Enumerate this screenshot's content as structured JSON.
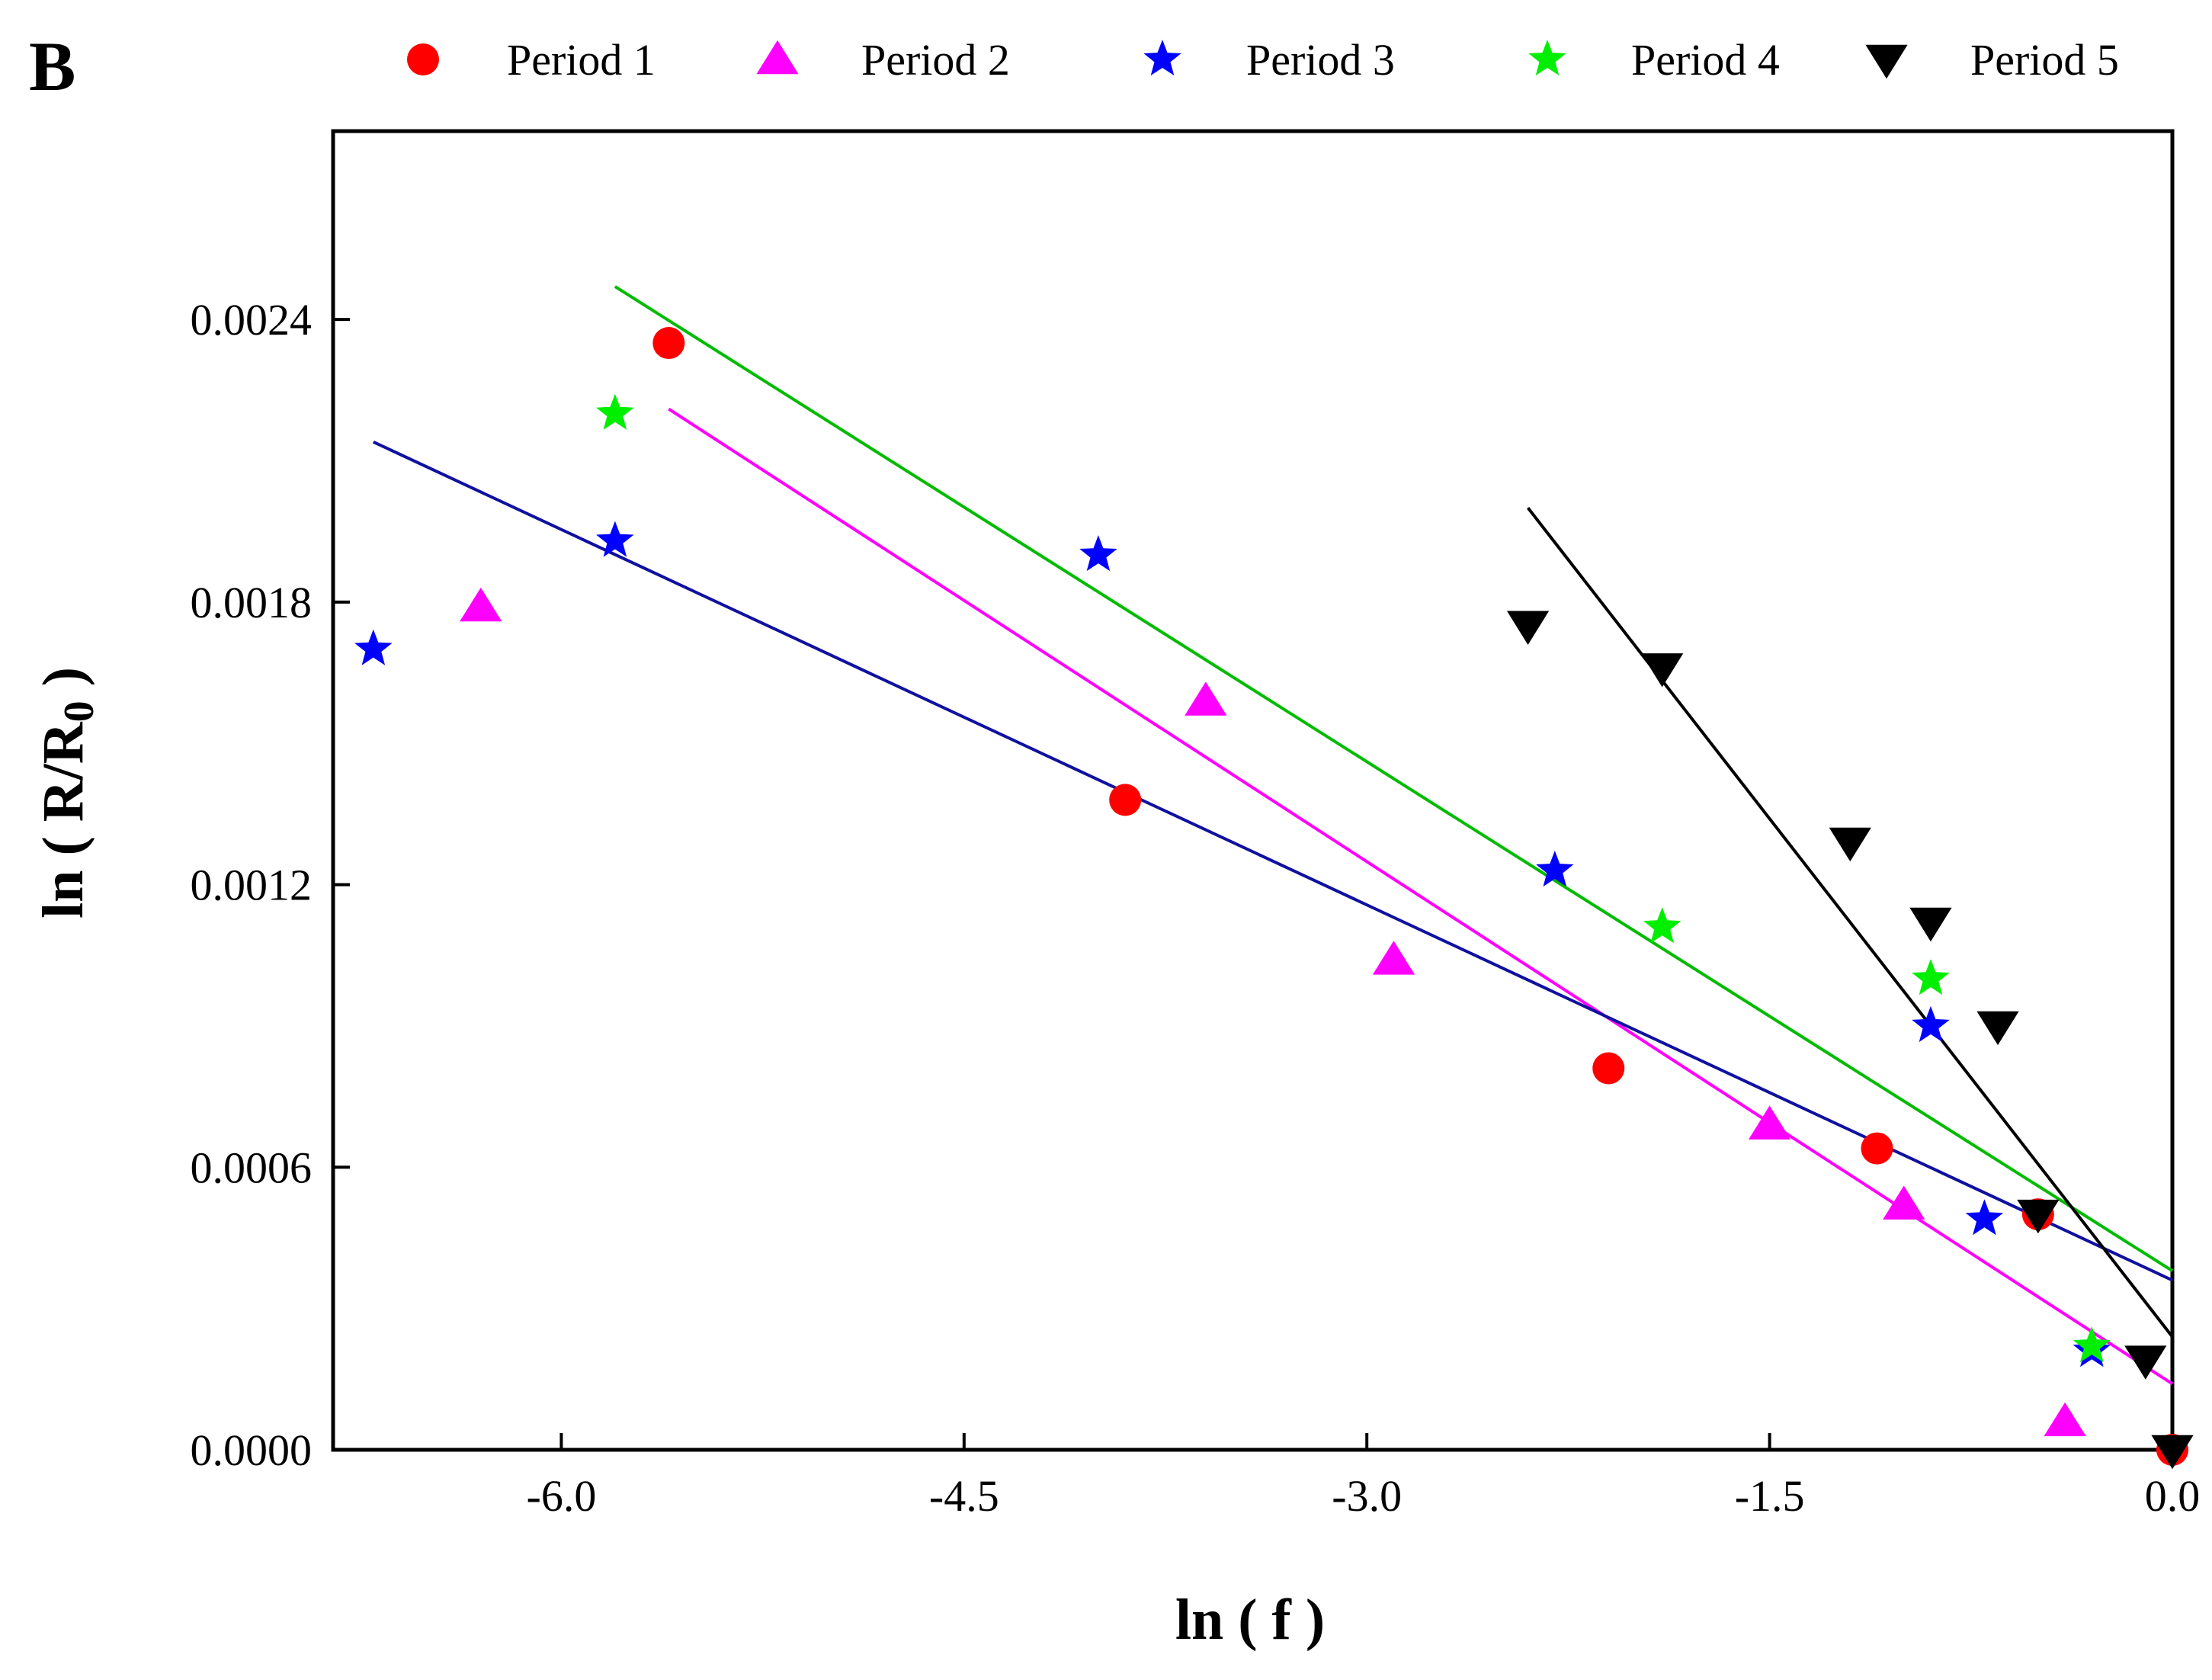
{
  "panel_label": "B",
  "chart_data": {
    "type": "scatter",
    "title": "",
    "xlabel": "ln ( f )",
    "ylabel": "ln ( R/R",
    "ylabel_subscript": "0",
    "ylabel_close": " )",
    "xlim": [
      -6.85,
      0.0
    ],
    "ylim": [
      0.0,
      0.0028
    ],
    "xticks": [
      -6.0,
      -4.5,
      -3.0,
      -1.5,
      0.0
    ],
    "xtick_labels": [
      "-6.0",
      "-4.5",
      "-3.0",
      "-1.5",
      "0.0"
    ],
    "yticks": [
      0.0,
      0.0006,
      0.0012,
      0.0018,
      0.0024
    ],
    "ytick_labels": [
      "0.0000",
      "0.0006",
      "0.0012",
      "0.0018",
      "0.0024"
    ],
    "grid": false,
    "legend_position": "top",
    "series": [
      {
        "name": "Period 1",
        "marker": "circle",
        "color": "#ff0000",
        "x": [
          -5.6,
          -3.9,
          -2.1,
          -1.1,
          -0.5,
          0.0
        ],
        "y": [
          0.00235,
          0.00138,
          0.00081,
          0.00064,
          0.0005,
          0.0
        ],
        "fit": {
          "x": [],
          "y": []
        }
      },
      {
        "name": "Period 2",
        "marker": "triangle-up",
        "color": "#ff00ff",
        "x": [
          -6.3,
          -3.6,
          -2.9,
          -1.5,
          -1.0,
          -0.4
        ],
        "y": [
          0.00179,
          0.00159,
          0.00104,
          0.00069,
          0.00052,
          6e-05
        ],
        "fit": {
          "x": [
            -5.6,
            0.0
          ],
          "y": [
            0.00221,
            0.00014
          ]
        }
      },
      {
        "name": "Period 3",
        "marker": "star",
        "color": "#0000ff",
        "x": [
          -6.7,
          -5.8,
          -4.0,
          -2.3,
          -0.9,
          -0.7,
          -0.3
        ],
        "y": [
          0.0017,
          0.00193,
          0.0019,
          0.00123,
          0.0009,
          0.00049,
          0.00021
        ],
        "fit": {
          "x": [
            -6.7,
            0.0
          ],
          "y": [
            0.00214,
            0.00036
          ]
        }
      },
      {
        "name": "Period 4",
        "marker": "star",
        "color": "#00ee00",
        "x": [
          -5.8,
          -1.9,
          -0.9,
          -0.3
        ],
        "y": [
          0.0022,
          0.00111,
          0.001,
          0.00022
        ],
        "fit": {
          "x": [
            -5.8,
            0.0
          ],
          "y": [
            0.00247,
            0.00038
          ]
        }
      },
      {
        "name": "Period 5",
        "marker": "triangle-down",
        "color": "#000000",
        "x": [
          -2.4,
          -1.9,
          -1.2,
          -0.9,
          -0.65,
          -0.5,
          -0.1,
          0.0
        ],
        "y": [
          0.00175,
          0.00166,
          0.00129,
          0.00112,
          0.0009,
          0.0005,
          0.00019,
          0.0
        ],
        "fit": {
          "x": [
            -2.4,
            0.0
          ],
          "y": [
            0.002,
            0.00024
          ]
        }
      }
    ],
    "fit_line_colors": {
      "Period 2": "#ff00ff",
      "Period 3": "#1010a0",
      "Period 4": "#00bb00",
      "Period 5": "#000000"
    }
  }
}
